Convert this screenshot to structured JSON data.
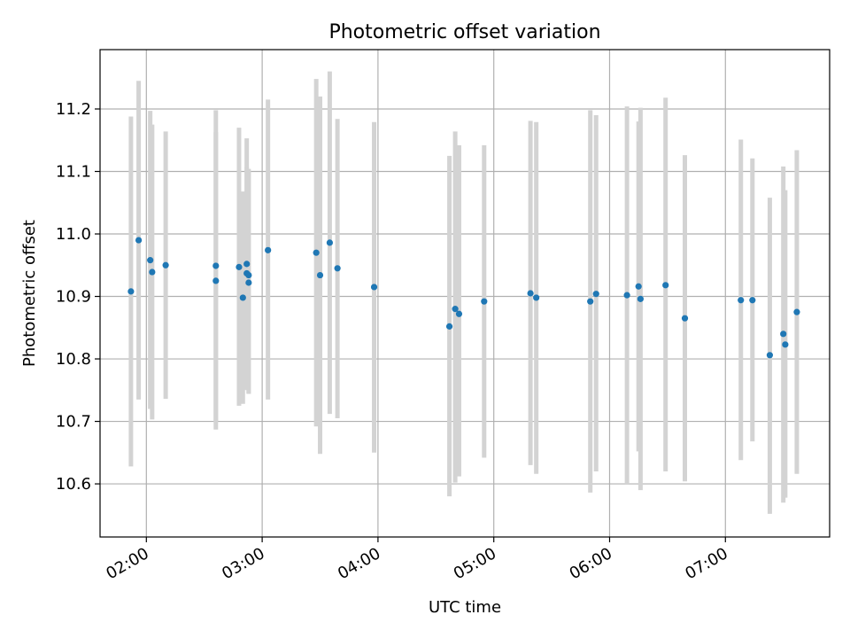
{
  "chart_data": {
    "type": "scatter",
    "title": "Photometric offset variation",
    "xlabel": "UTC time",
    "ylabel": "Photometric offset",
    "xlim": [
      "01:36",
      "07:54"
    ],
    "ylim": [
      10.515,
      11.295
    ],
    "x_ticks": [
      "02:00",
      "03:00",
      "04:00",
      "05:00",
      "06:00",
      "07:00"
    ],
    "y_ticks": [
      10.6,
      10.7,
      10.8,
      10.9,
      11.0,
      11.1,
      11.2
    ],
    "y_tick_labels": [
      "10.6",
      "10.7",
      "10.8",
      "10.9",
      "11.0",
      "11.1",
      "11.2"
    ],
    "grid": true,
    "colors": {
      "points": "#1f77b4",
      "errorbars": "#d3d3d3",
      "grid": "#b0b0b0"
    },
    "series": [
      {
        "points": [
          {
            "t": "01:52",
            "y": 10.908,
            "lo": 10.628,
            "hi": 11.188
          },
          {
            "t": "01:56",
            "y": 10.99,
            "lo": 10.735,
            "hi": 11.245
          },
          {
            "t": "02:02",
            "y": 10.958,
            "lo": 10.72,
            "hi": 11.197
          },
          {
            "t": "02:03",
            "y": 10.939,
            "lo": 10.703,
            "hi": 11.175
          },
          {
            "t": "02:10",
            "y": 10.95,
            "lo": 10.736,
            "hi": 11.164
          },
          {
            "t": "02:36",
            "y": 10.949,
            "lo": 10.7,
            "hi": 11.198
          },
          {
            "t": "02:36",
            "y": 10.925,
            "lo": 10.687,
            "hi": 11.163
          },
          {
            "t": "02:48",
            "y": 10.947,
            "lo": 10.725,
            "hi": 11.17
          },
          {
            "t": "02:50",
            "y": 10.898,
            "lo": 10.728,
            "hi": 11.068
          },
          {
            "t": "02:52",
            "y": 10.952,
            "lo": 10.75,
            "hi": 11.153
          },
          {
            "t": "02:52",
            "y": 10.937,
            "lo": 10.76,
            "hi": 11.107
          },
          {
            "t": "02:53",
            "y": 10.934,
            "lo": 10.745,
            "hi": 11.104
          },
          {
            "t": "02:53",
            "y": 10.922,
            "lo": 10.744,
            "hi": 11.1
          },
          {
            "t": "03:03",
            "y": 10.974,
            "lo": 10.735,
            "hi": 11.215
          },
          {
            "t": "03:28",
            "y": 10.97,
            "lo": 10.692,
            "hi": 11.248
          },
          {
            "t": "03:30",
            "y": 10.934,
            "lo": 10.648,
            "hi": 11.22
          },
          {
            "t": "03:35",
            "y": 10.986,
            "lo": 10.712,
            "hi": 11.26
          },
          {
            "t": "03:39",
            "y": 10.945,
            "lo": 10.705,
            "hi": 11.184
          },
          {
            "t": "03:58",
            "y": 10.915,
            "lo": 10.65,
            "hi": 11.179
          },
          {
            "t": "04:37",
            "y": 10.852,
            "lo": 10.58,
            "hi": 11.125
          },
          {
            "t": "04:40",
            "y": 10.88,
            "lo": 10.602,
            "hi": 11.164
          },
          {
            "t": "04:42",
            "y": 10.872,
            "lo": 10.612,
            "hi": 11.142
          },
          {
            "t": "04:55",
            "y": 10.892,
            "lo": 10.642,
            "hi": 11.142
          },
          {
            "t": "05:19",
            "y": 10.905,
            "lo": 10.63,
            "hi": 11.181
          },
          {
            "t": "05:22",
            "y": 10.898,
            "lo": 10.616,
            "hi": 11.179
          },
          {
            "t": "05:50",
            "y": 10.892,
            "lo": 10.586,
            "hi": 11.198
          },
          {
            "t": "05:53",
            "y": 10.904,
            "lo": 10.62,
            "hi": 11.19
          },
          {
            "t": "06:09",
            "y": 10.902,
            "lo": 10.6,
            "hi": 11.204
          },
          {
            "t": "06:15",
            "y": 10.916,
            "lo": 10.652,
            "hi": 11.18
          },
          {
            "t": "06:16",
            "y": 10.896,
            "lo": 10.59,
            "hi": 11.202
          },
          {
            "t": "06:29",
            "y": 10.918,
            "lo": 10.62,
            "hi": 11.218
          },
          {
            "t": "06:39",
            "y": 10.865,
            "lo": 10.604,
            "hi": 11.126
          },
          {
            "t": "07:08",
            "y": 10.894,
            "lo": 10.638,
            "hi": 11.151
          },
          {
            "t": "07:14",
            "y": 10.894,
            "lo": 10.668,
            "hi": 11.121
          },
          {
            "t": "07:23",
            "y": 10.806,
            "lo": 10.552,
            "hi": 11.058
          },
          {
            "t": "07:30",
            "y": 10.84,
            "lo": 10.57,
            "hi": 11.108
          },
          {
            "t": "07:31",
            "y": 10.823,
            "lo": 10.578,
            "hi": 11.07
          },
          {
            "t": "07:37",
            "y": 10.875,
            "lo": 10.616,
            "hi": 11.134
          }
        ]
      }
    ]
  }
}
